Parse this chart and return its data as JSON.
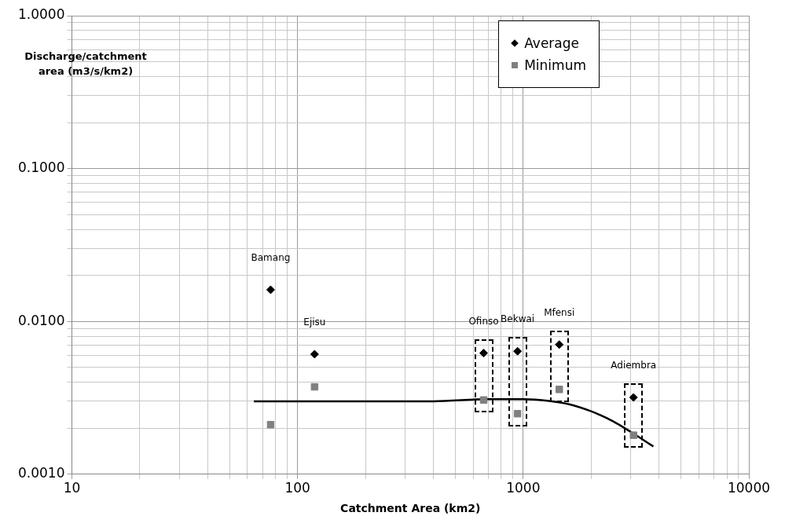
{
  "chart_data": {
    "type": "scatter",
    "xlabel": "Catchment Area (km2)",
    "ylabel": "Discharge/catchment area (m3/s/km2)",
    "log": "xy",
    "grid": true,
    "legend": "top right",
    "xlim": [
      10,
      10000
    ],
    "xticks": [
      10,
      100,
      1000,
      10000
    ],
    "ylim": [
      0.001,
      1
    ],
    "yticks": [
      {
        "value": 0.001,
        "label": "0.0010"
      },
      {
        "value": 0.01,
        "label": "0.0100"
      },
      {
        "value": 0.1,
        "label": "0.1000"
      },
      {
        "value": 1,
        "label": "1.0000"
      }
    ],
    "series": [
      {
        "name": "Average",
        "type": "scatter",
        "marker": "diamond",
        "color": "#000000",
        "x": [
          76,
          119,
          668,
          944,
          1445,
          3083
        ],
        "values": [
          0.0161,
          0.0061,
          0.0062,
          0.00638,
          0.00705,
          0.00318
        ]
      },
      {
        "name": "Minimum",
        "type": "scatter",
        "marker": "square",
        "color": "#808080",
        "x": [
          76,
          119,
          668,
          944,
          1445,
          3083
        ],
        "values": [
          0.00211,
          0.00373,
          0.00306,
          0.00249,
          0.00359,
          0.0018
        ]
      },
      {
        "type": "line",
        "marker": "none",
        "color": "#000000",
        "x": [
          64,
          200,
          400,
          700,
          1000,
          1300,
          1600,
          2000,
          2500,
          3000,
          3775
        ],
        "values": [
          0.003,
          0.003,
          0.003,
          0.0031,
          0.0031,
          0.00302,
          0.00287,
          0.00258,
          0.00222,
          0.00189,
          0.00152
        ]
      }
    ],
    "annotations": [
      {
        "text": "Bamang",
        "x": 76,
        "y": 0.0161
      },
      {
        "text": "Ejisu",
        "x": 119,
        "y": 0.0061
      },
      {
        "text": "Ofinso",
        "x": 668,
        "y": 0.0062
      },
      {
        "text": "Bekwai",
        "x": 944,
        "y": 0.00638
      },
      {
        "text": "Mfensi",
        "x": 1445,
        "y": 0.00705
      },
      {
        "text": "Adiembra",
        "x": 3083,
        "y": 0.00318
      }
    ]
  }
}
